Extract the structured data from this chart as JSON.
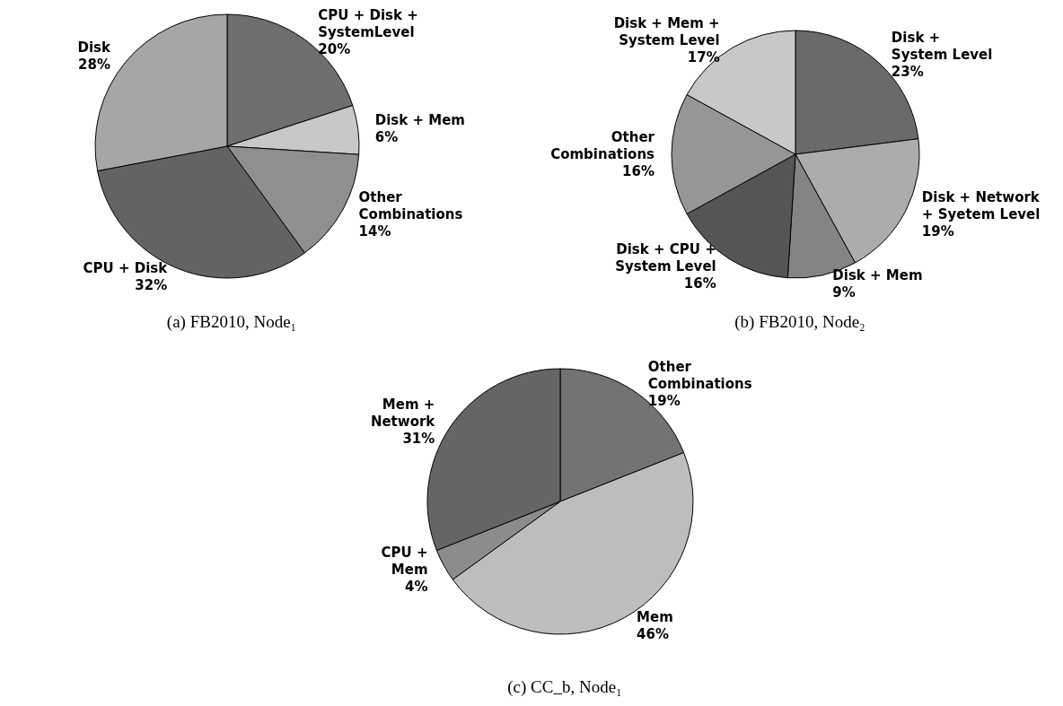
{
  "chart_data": [
    {
      "type": "pie",
      "title": "(a) FB2010, Node₁",
      "categories": [
        "CPU + Disk +\nSystemLevel",
        "Disk + Mem",
        "Other\nCombinations",
        "CPU + Disk",
        "Disk"
      ],
      "values": [
        20,
        6,
        14,
        32,
        28
      ],
      "value_labels": [
        "20%",
        "6%",
        "14%",
        "32%",
        "28%"
      ],
      "colors": [
        "#6e6e6e",
        "#c8c8c8",
        "#8f8f8f",
        "#636363",
        "#a6a6a6"
      ]
    },
    {
      "type": "pie",
      "title": "(b) FB2010, Node₂",
      "categories": [
        "Disk +\nSystem Level",
        "Disk + Network\n+ Syetem Level",
        "Disk + Mem",
        "Disk + CPU +\nSystem Level",
        "Other\nCombinations",
        "Disk + Mem +\nSystem Level"
      ],
      "values": [
        23,
        19,
        9,
        16,
        16,
        17
      ],
      "value_labels": [
        "23%",
        "19%",
        "9%",
        "16%",
        "16%",
        "17%"
      ],
      "colors": [
        "#6a6a6a",
        "#acacac",
        "#848484",
        "#555555",
        "#969696",
        "#c8c8c8"
      ]
    },
    {
      "type": "pie",
      "title": "(c) CC_b, Node₁",
      "categories": [
        "Other\nCombinations",
        "Mem",
        "CPU +\nMem",
        "Mem +\nNetwork"
      ],
      "values": [
        19,
        46,
        4,
        31
      ],
      "value_labels": [
        "19%",
        "46%",
        "4%",
        "31%"
      ],
      "colors": [
        "#737373",
        "#bdbdbd",
        "#8c8c8c",
        "#656565"
      ]
    }
  ]
}
